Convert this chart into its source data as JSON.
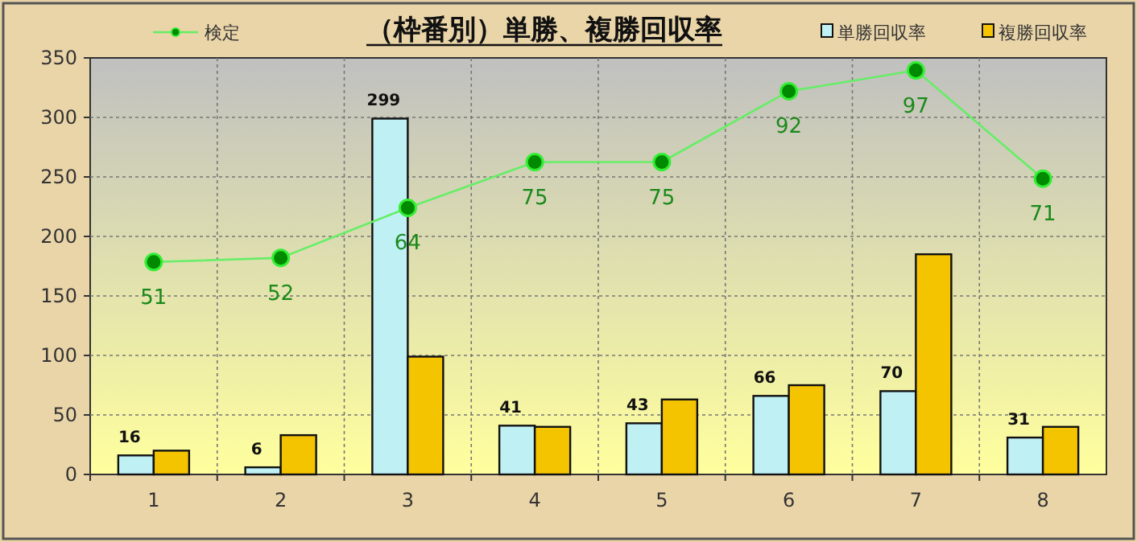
{
  "chart_data": {
    "type": "bar",
    "title": "（枠番別）単勝、複勝回収率",
    "categories": [
      "1",
      "2",
      "3",
      "4",
      "5",
      "6",
      "7",
      "8"
    ],
    "series": [
      {
        "name": "単勝回収率",
        "color": "#bff0f4",
        "values": [
          16,
          6,
          299,
          41,
          43,
          66,
          70,
          31
        ],
        "value_labels": [
          "16",
          "6",
          "299",
          "41",
          "43",
          "66",
          "70",
          "31"
        ]
      },
      {
        "name": "複勝回収率",
        "color": "#f5c400",
        "values": [
          20,
          33,
          99,
          40,
          63,
          75,
          185,
          40
        ]
      },
      {
        "name": "検定",
        "type": "line",
        "axis": "y2",
        "color": "#66ee66",
        "values": [
          51,
          52,
          64,
          75,
          75,
          92,
          97,
          71
        ],
        "value_labels": [
          "51",
          "52",
          "64",
          "75",
          "75",
          "92",
          "97",
          "71"
        ]
      }
    ],
    "ylim": [
      0,
      350
    ],
    "yticks": [
      0,
      50,
      100,
      150,
      200,
      250,
      300,
      350
    ],
    "y2lim": [
      0,
      100
    ],
    "grid": true,
    "legend": "top",
    "marker": "circle"
  }
}
